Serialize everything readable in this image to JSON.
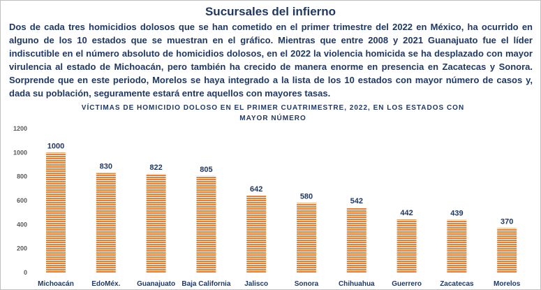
{
  "title": "Sucursales del infierno",
  "paragraph": "Dos de cada tres homicidios dolosos que se han cometido en el primer trimestre del 2022 en México, ha ocurrido en alguno de los 10 estados que se muestran en el gráfico. Mientras que entre 2008 y 2021 Guanajuato fue el líder indiscutible en el número absoluto de homicidios dolosos, en el 2022 la violencia homicida se ha desplazado con mayor virulencia al estado de Michoacán, pero también ha crecido de manera enorme en presencia en Zacatecas y Sonora. Sorprende que en este periodo, Morelos se haya integrado a la lista de los 10 estados con mayor número de casos y, dada su población, seguramente estará entre aquellos con mayores tasas.",
  "chart_data": {
    "type": "bar",
    "title": "VÍCTIMAS DE HOMICIDIO DOLOSO EN EL PRIMER CUATRIMESTRE, 2022, EN LOS ESTADOS CON MAYOR NÚMERO",
    "categories": [
      "Michoacán",
      "EdoMéx.",
      "Guanajuato",
      "Baja California",
      "Jalisco",
      "Sonora",
      "Chihuahua",
      "Guerrero",
      "Zacatecas",
      "Morelos"
    ],
    "values": [
      1000,
      830,
      822,
      805,
      642,
      580,
      542,
      442,
      439,
      370
    ],
    "yticks": [
      0,
      200,
      400,
      600,
      800,
      1000,
      1200
    ],
    "ylim": [
      0,
      1200
    ],
    "xlabel": "",
    "ylabel": "",
    "bar_color": "#ed7d31"
  }
}
